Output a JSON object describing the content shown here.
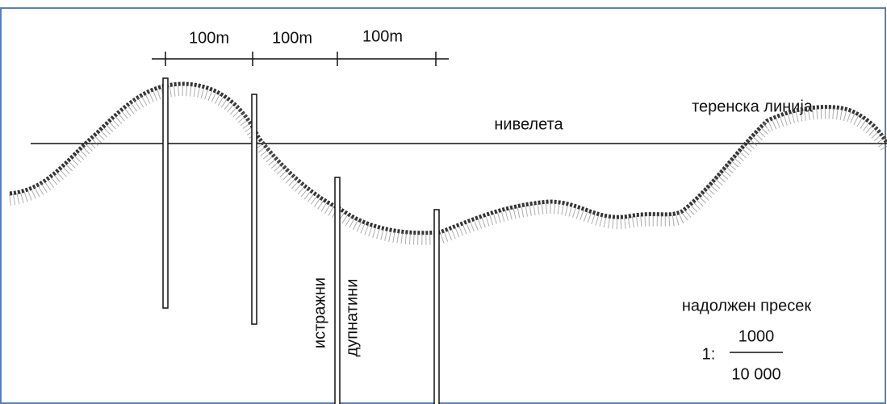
{
  "dimensions": [
    "100m",
    "100m",
    "100m"
  ],
  "terrain_label": "теренска линија",
  "grade_line_label": "нивелета",
  "boreholes_label": [
    "истражни",
    "дупнатини"
  ],
  "section": {
    "title": "надолжен пресек",
    "scale_prefix": "1:",
    "numerator": "1000",
    "denominator": "10 000"
  }
}
